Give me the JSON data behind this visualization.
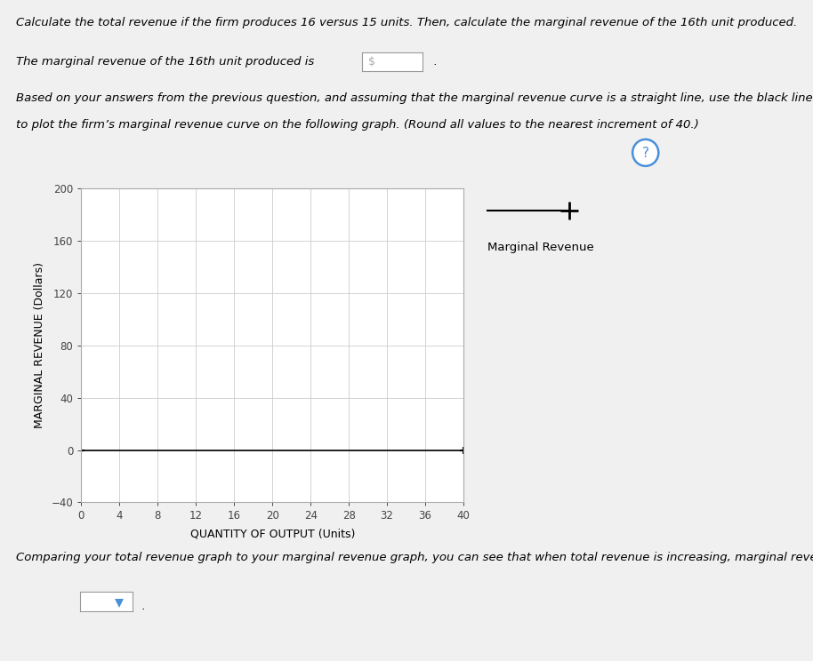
{
  "title_text1": "Calculate the total revenue if the firm produces 16 versus 15 units. Then, calculate the marginal revenue of the 16th unit produced.",
  "title_text2": "The marginal revenue of the 16th unit produced is",
  "title_text3": "Based on your answers from the previous question, and assuming that the marginal revenue curve is a straight line, use the black line (plus symbol)",
  "title_text4": "to plot the firm’s marginal revenue curve on the following graph. (Round all values to the nearest increment of 40.)",
  "ylabel": "MARGINAL REVENUE (Dollars)",
  "xlabel": "QUANTITY OF OUTPUT (Units)",
  "yticks": [
    200,
    160,
    120,
    80,
    40,
    0,
    -40
  ],
  "xticks": [
    0,
    4,
    8,
    12,
    16,
    20,
    24,
    28,
    32,
    36,
    40
  ],
  "ylim": [
    -40,
    200
  ],
  "xlim": [
    0,
    40
  ],
  "line_color": "black",
  "line_x": [
    0,
    40
  ],
  "line_y": [
    0,
    0
  ],
  "legend_label": "Marginal Revenue",
  "plot_bg_color": "#ffffff",
  "grid_color": "#cccccc",
  "text_color": "#000000",
  "question_circle_color": "#4a90d9",
  "bottom_text": "Comparing your total revenue graph to your marginal revenue graph, you can see that when total revenue is increasing, marginal revenue is",
  "fig_bg_color": "#f0f0f0",
  "panel_bg_color": "#ffffff",
  "box_color": "#888888",
  "input_box_text": "$"
}
